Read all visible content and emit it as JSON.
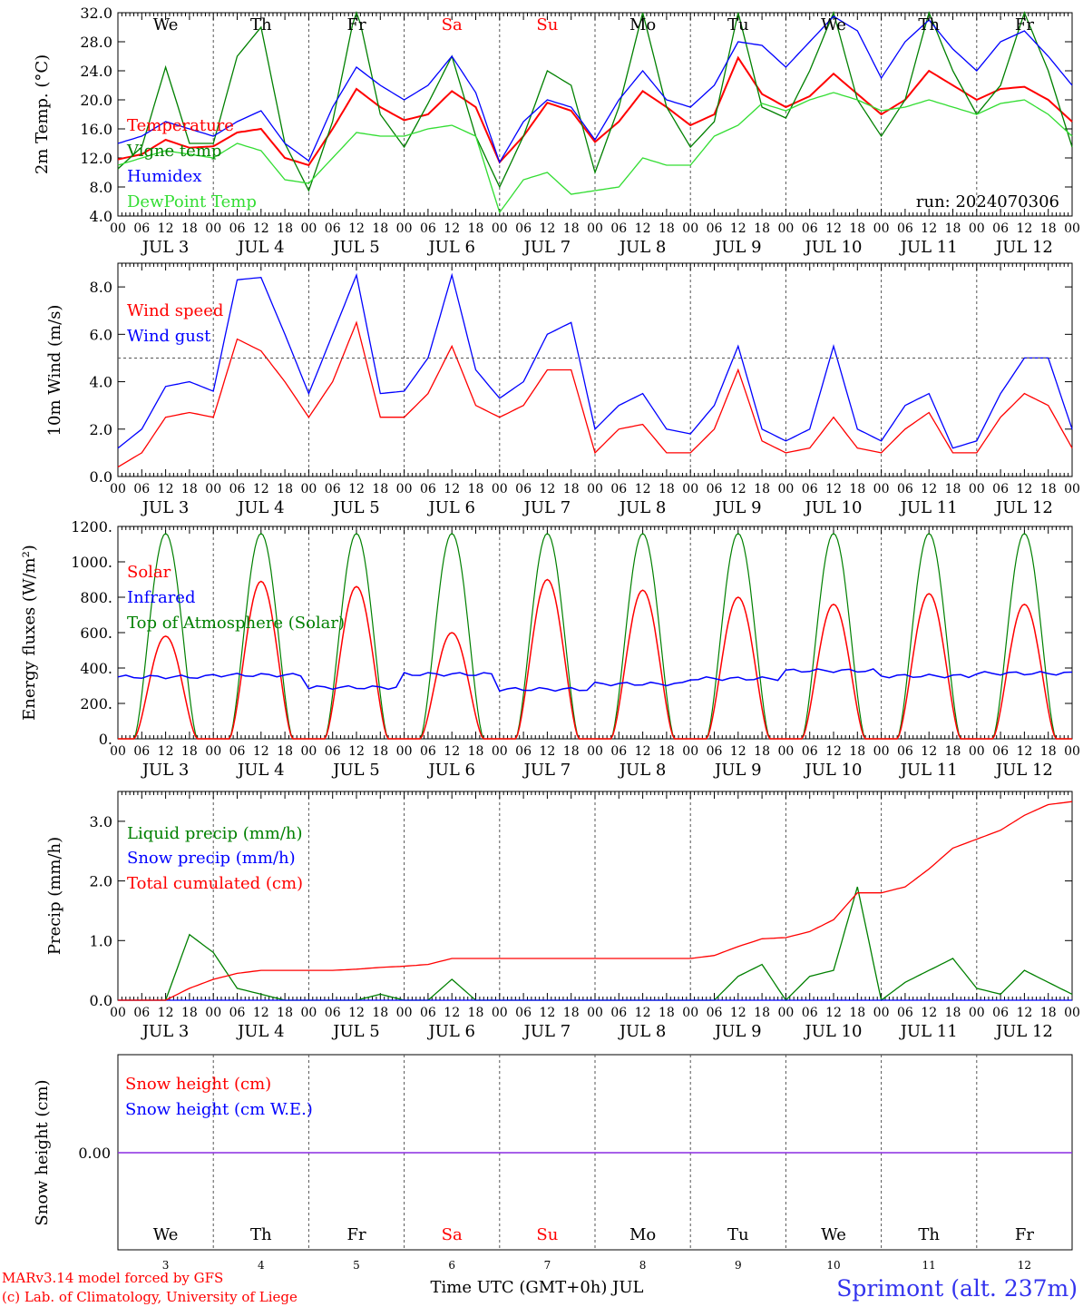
{
  "colors": {
    "red": "#ff0000",
    "blue": "#0000ff",
    "green": "#008000",
    "lightgreen": "#33dd33",
    "purple": "#8a2be2",
    "grid": "#555555"
  },
  "footer": {
    "credit_line1": "MARv3.14 model forced by GFS",
    "credit_line2": "(c) Lab. of Climatology, University of Liege",
    "xlabel": "Time UTC (GMT+0h) JUL",
    "station": "Sprimont (alt. 237m)"
  },
  "run_label": "run: 2024070306",
  "days": {
    "weekday_names": [
      "We",
      "Th",
      "Fr",
      "Sa",
      "Su",
      "Mo",
      "Tu",
      "We",
      "Th",
      "Fr"
    ],
    "weekend_flags": [
      false,
      false,
      false,
      true,
      true,
      false,
      false,
      false,
      false,
      false
    ],
    "date_labels": [
      "JUL  3",
      "JUL  4",
      "JUL  5",
      "JUL  6",
      "JUL  7",
      "JUL  8",
      "JUL  9",
      "JUL 10",
      "JUL 11",
      "JUL 12"
    ],
    "day_numbers": [
      "3",
      "4",
      "5",
      "6",
      "7",
      "8",
      "9",
      "10",
      "11",
      "12"
    ],
    "hour_ticks": [
      "00",
      "06",
      "12",
      "18"
    ],
    "final_tick": "00"
  },
  "chart_data": [
    {
      "type": "line",
      "ylabel": "2m Temp. (°C)",
      "ylim": [
        4,
        32
      ],
      "yticks": [
        "4.0",
        "8.0",
        "12.0",
        "16.0",
        "20.0",
        "24.0",
        "28.0",
        "32.0"
      ],
      "x_hours": [
        0,
        6,
        12,
        18,
        24,
        30,
        36,
        42,
        48,
        54,
        60,
        66,
        72,
        78,
        84,
        90,
        96,
        102,
        108,
        114,
        120,
        126,
        132,
        138,
        144,
        150,
        156,
        162,
        168,
        174,
        180,
        186,
        192,
        198,
        204,
        210,
        216,
        222,
        228,
        234,
        240
      ],
      "series": [
        {
          "name": "Temperature",
          "color": "#ff0000",
          "values": [
            11.8,
            12.5,
            14.5,
            13.4,
            13.6,
            15.5,
            16.0,
            12.0,
            11.0,
            16.0,
            21.5,
            19.0,
            17.2,
            18.0,
            21.2,
            19.0,
            11.4,
            15.0,
            19.6,
            18.5,
            14.2,
            17.0,
            21.2,
            19.0,
            16.5,
            18.0,
            25.8,
            20.8,
            19.0,
            20.5,
            23.6,
            20.8,
            18.0,
            20.0,
            24.0,
            22.0,
            20.0,
            21.5,
            21.8,
            20.0,
            17.0
          ]
        },
        {
          "name": "Vigne temp",
          "color": "#008000",
          "values": [
            10.5,
            13.5,
            24.5,
            14.0,
            14.0,
            26.0,
            30.0,
            14.0,
            7.5,
            17.0,
            33.0,
            18.0,
            13.5,
            19.5,
            26.0,
            15.0,
            8.0,
            15.0,
            24.0,
            22.0,
            10.0,
            19.0,
            32.0,
            19.0,
            13.5,
            17.0,
            32.0,
            19.0,
            17.5,
            24.0,
            32.0,
            20.0,
            15.0,
            20.0,
            32.0,
            24.0,
            18.0,
            22.0,
            32.0,
            24.0,
            13.5
          ]
        },
        {
          "name": "Humidex",
          "color": "#0000ff",
          "values": [
            14.0,
            15.0,
            17.0,
            16.0,
            15.0,
            17.0,
            18.5,
            14.0,
            11.6,
            19.0,
            24.5,
            22.0,
            20.0,
            22.0,
            26.0,
            21.0,
            11.4,
            17.0,
            20.0,
            19.0,
            14.5,
            20.0,
            24.0,
            20.0,
            19.0,
            22.0,
            28.0,
            27.5,
            24.5,
            28.0,
            31.5,
            29.5,
            23.0,
            28.0,
            31.0,
            27.0,
            24.0,
            28.0,
            29.5,
            26.0,
            22.0
          ]
        },
        {
          "name": "DewPoint Temp",
          "color": "#33dd33",
          "values": [
            11.0,
            12.0,
            13.0,
            12.5,
            12.0,
            14.0,
            13.0,
            9.0,
            8.5,
            12.0,
            15.5,
            15.0,
            15.0,
            16.0,
            16.5,
            15.0,
            4.5,
            9.0,
            10.0,
            7.0,
            7.5,
            8.0,
            12.0,
            11.0,
            11.0,
            15.0,
            16.5,
            19.5,
            18.5,
            20.0,
            21.0,
            20.0,
            18.5,
            19.0,
            20.0,
            19.0,
            18.0,
            19.5,
            20.0,
            18.0,
            15.0
          ]
        }
      ]
    },
    {
      "type": "line",
      "ylabel": "10m Wind (m/s)",
      "ylim": [
        0,
        9
      ],
      "yticks": [
        "0.0",
        "2.0",
        "4.0",
        "6.0",
        "8.0"
      ],
      "reference_line": 5,
      "x_hours": [
        0,
        6,
        12,
        18,
        24,
        30,
        36,
        42,
        48,
        54,
        60,
        66,
        72,
        78,
        84,
        90,
        96,
        102,
        108,
        114,
        120,
        126,
        132,
        138,
        144,
        150,
        156,
        162,
        168,
        174,
        180,
        186,
        192,
        198,
        204,
        210,
        216,
        222,
        228,
        234,
        240
      ],
      "series": [
        {
          "name": "Wind speed",
          "color": "#ff0000",
          "values": [
            0.4,
            1.0,
            2.5,
            2.7,
            2.5,
            5.8,
            5.3,
            4.0,
            2.5,
            4.0,
            6.5,
            2.5,
            2.5,
            3.5,
            5.5,
            3.0,
            2.5,
            3.0,
            4.5,
            4.5,
            1.0,
            2.0,
            2.2,
            1.0,
            1.0,
            2.0,
            4.5,
            1.5,
            1.0,
            1.2,
            2.5,
            1.2,
            1.0,
            2.0,
            2.7,
            1.0,
            1.0,
            2.5,
            3.5,
            3.0,
            1.2
          ]
        },
        {
          "name": "Wind gust",
          "color": "#0000ff",
          "values": [
            1.2,
            2.0,
            3.8,
            4.0,
            3.6,
            8.3,
            8.4,
            6.0,
            3.5,
            6.0,
            8.5,
            3.5,
            3.6,
            5.0,
            8.5,
            4.5,
            3.3,
            4.0,
            6.0,
            6.5,
            2.0,
            3.0,
            3.5,
            2.0,
            1.8,
            3.0,
            5.5,
            2.0,
            1.5,
            2.0,
            5.5,
            2.0,
            1.5,
            3.0,
            3.5,
            1.2,
            1.5,
            3.5,
            5.0,
            5.0,
            2.0
          ]
        }
      ]
    },
    {
      "type": "line",
      "ylabel": "Energy fluxes (W/m²)",
      "ylim": [
        0,
        1200
      ],
      "yticks": [
        "0.",
        "200.",
        "400.",
        "600.",
        "800.",
        "1000.",
        "1200."
      ],
      "series": [
        {
          "name": "Solar",
          "color": "#ff0000",
          "daily_peak": [
            580,
            890,
            860,
            600,
            900,
            840,
            800,
            760,
            820,
            760
          ]
        },
        {
          "name": "Infrared",
          "color": "#0000ff",
          "daily_mean": [
            350,
            360,
            290,
            365,
            280,
            310,
            340,
            385,
            355,
            370
          ]
        },
        {
          "name": "Top of Atmosphere (Solar)",
          "color": "#008000",
          "daily_peak": [
            1160,
            1160,
            1160,
            1160,
            1160,
            1160,
            1160,
            1160,
            1160,
            1160
          ]
        }
      ]
    },
    {
      "type": "line",
      "ylabel": "Precip (mm/h)",
      "ylim": [
        0,
        3.5
      ],
      "yticks": [
        "0.0",
        "1.0",
        "2.0",
        "3.0"
      ],
      "x_hours": [
        0,
        6,
        12,
        18,
        24,
        30,
        36,
        42,
        48,
        54,
        60,
        66,
        72,
        78,
        84,
        90,
        96,
        102,
        108,
        114,
        120,
        126,
        132,
        138,
        144,
        150,
        156,
        162,
        168,
        174,
        180,
        186,
        192,
        198,
        204,
        210,
        216,
        222,
        228,
        234,
        240
      ],
      "series": [
        {
          "name": "Liquid precip (mm/h)",
          "color": "#008000",
          "values": [
            0,
            0,
            0,
            1.1,
            0.8,
            0.2,
            0.1,
            0,
            0,
            0,
            0,
            0.1,
            0,
            0,
            0.35,
            0,
            0,
            0,
            0,
            0,
            0,
            0,
            0,
            0,
            0,
            0,
            0.4,
            0.6,
            0,
            0.4,
            0.5,
            1.9,
            0,
            0.3,
            0.5,
            0.7,
            0.2,
            0.1,
            0.5,
            0.3,
            0.1
          ]
        },
        {
          "name": "Snow precip (mm/h)",
          "color": "#0000ff",
          "values": [
            0,
            0,
            0,
            0,
            0,
            0,
            0,
            0,
            0,
            0,
            0,
            0,
            0,
            0,
            0,
            0,
            0,
            0,
            0,
            0,
            0,
            0,
            0,
            0,
            0,
            0,
            0,
            0,
            0,
            0,
            0,
            0,
            0,
            0,
            0,
            0,
            0,
            0,
            0,
            0,
            0
          ]
        },
        {
          "name": "Total cumulated (cm)",
          "color": "#ff0000",
          "values": [
            0,
            0,
            0,
            0.2,
            0.35,
            0.45,
            0.5,
            0.5,
            0.5,
            0.5,
            0.52,
            0.55,
            0.57,
            0.6,
            0.7,
            0.7,
            0.7,
            0.7,
            0.7,
            0.7,
            0.7,
            0.7,
            0.7,
            0.7,
            0.7,
            0.75,
            0.9,
            1.03,
            1.05,
            1.15,
            1.35,
            1.8,
            1.8,
            1.9,
            2.2,
            2.55,
            2.7,
            2.85,
            3.1,
            3.28,
            3.33
          ]
        }
      ]
    },
    {
      "type": "line",
      "ylabel": "Snow height (cm)",
      "yticks": [
        "0.00"
      ],
      "series": [
        {
          "name": "Snow height (cm)",
          "color": "#ff0000",
          "values": [
            0,
            0
          ]
        },
        {
          "name": "Snow height (cm W.E.)",
          "color": "#0000ff",
          "values": [
            0,
            0
          ]
        }
      ]
    }
  ]
}
